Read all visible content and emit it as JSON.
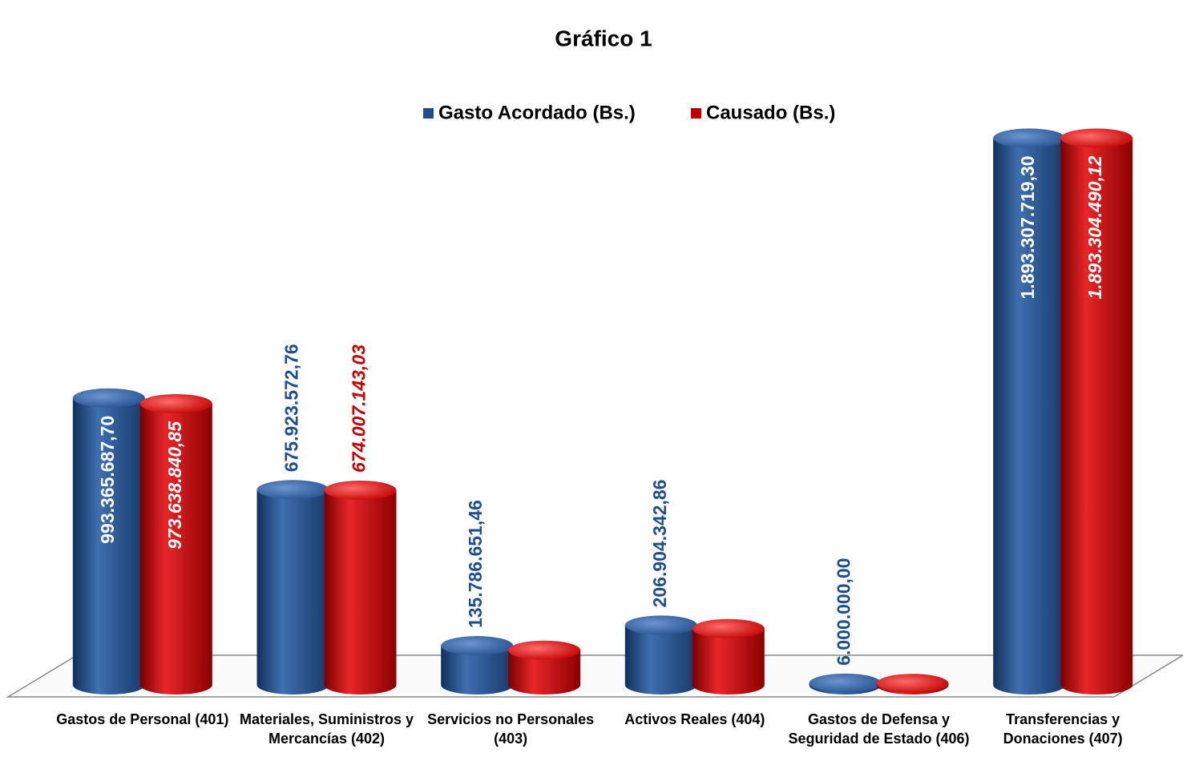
{
  "chart_data": {
    "type": "bar",
    "title": "Gráfico 1",
    "categories": [
      "Gastos de Personal (401)",
      "Materiales, Suministros y Mercancías (402)",
      "Servicios no Personales (403)",
      "Activos Reales (404)",
      "Gastos de Defensa y Seguridad de Estado (406)",
      "Transferencias y Donaciones (407)"
    ],
    "series": [
      {
        "name": "Gasto Acordado (Bs.)",
        "color": "#1f4e8c",
        "values": [
          993365687.7,
          675923572.76,
          135786651.46,
          206904342.86,
          6000000.0,
          1893307719.3
        ],
        "value_labels": [
          "993.365.687,70",
          "675.923.572,76",
          "135.786.651,46",
          "206.904.342,86",
          "6.000.000,00",
          "1.893.307.719,30"
        ]
      },
      {
        "name": "Causado (Bs.)",
        "color": "#c00000",
        "values": [
          973638840.85,
          674007143.03,
          120000000,
          195000000,
          5000000,
          1893304490.12
        ],
        "value_labels": [
          "973.638.840,85",
          "674.007.143,03",
          null,
          null,
          null,
          "1.893.304.490,12"
        ]
      }
    ],
    "ylim": [
      0,
      1900000000
    ]
  }
}
